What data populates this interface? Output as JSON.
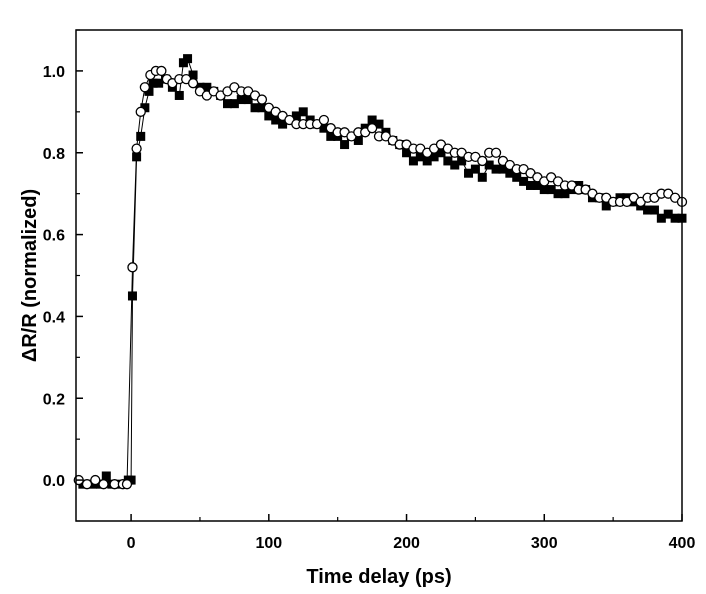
{
  "chart_data": {
    "type": "scatter",
    "title": "",
    "xlabel": "Time delay (ps)",
    "ylabel": "ΔR/R (normalized)",
    "xlim": [
      -40,
      400
    ],
    "ylim": [
      -0.1,
      1.1
    ],
    "x_ticks": [
      0,
      100,
      200,
      300,
      400
    ],
    "x_tick_labels": [
      "0",
      "100",
      "200",
      "300",
      "400"
    ],
    "y_ticks": [
      0.0,
      0.2,
      0.4,
      0.6,
      0.8,
      1.0
    ],
    "y_tick_labels": [
      "0.0",
      "0.2",
      "0.4",
      "0.6",
      "0.8",
      "1.0"
    ],
    "grid": false,
    "legend": "none",
    "series": [
      {
        "marker": "filled-square",
        "color": "#000000",
        "points": [
          [
            -35,
            -0.01
          ],
          [
            -28,
            -0.01
          ],
          [
            -22,
            -0.01
          ],
          [
            -18,
            0.01
          ],
          [
            -14,
            -0.01
          ],
          [
            -8,
            -0.01
          ],
          [
            -2,
            0.0
          ],
          [
            0,
            0.0
          ],
          [
            1,
            0.45
          ],
          [
            4,
            0.79
          ],
          [
            7,
            0.84
          ],
          [
            10,
            0.91
          ],
          [
            13,
            0.95
          ],
          [
            16,
            0.97
          ],
          [
            20,
            0.97
          ],
          [
            25,
            0.98
          ],
          [
            30,
            0.96
          ],
          [
            35,
            0.94
          ],
          [
            38,
            1.02
          ],
          [
            41,
            1.03
          ],
          [
            45,
            0.99
          ],
          [
            50,
            0.96
          ],
          [
            55,
            0.96
          ],
          [
            60,
            0.95
          ],
          [
            65,
            0.94
          ],
          [
            70,
            0.92
          ],
          [
            75,
            0.92
          ],
          [
            80,
            0.93
          ],
          [
            85,
            0.93
          ],
          [
            90,
            0.91
          ],
          [
            95,
            0.91
          ],
          [
            100,
            0.89
          ],
          [
            105,
            0.88
          ],
          [
            110,
            0.87
          ],
          [
            115,
            0.88
          ],
          [
            120,
            0.89
          ],
          [
            125,
            0.9
          ],
          [
            130,
            0.88
          ],
          [
            135,
            0.87
          ],
          [
            140,
            0.86
          ],
          [
            145,
            0.84
          ],
          [
            150,
            0.84
          ],
          [
            155,
            0.82
          ],
          [
            160,
            0.84
          ],
          [
            165,
            0.83
          ],
          [
            170,
            0.86
          ],
          [
            175,
            0.88
          ],
          [
            180,
            0.87
          ],
          [
            185,
            0.85
          ],
          [
            190,
            0.83
          ],
          [
            195,
            0.82
          ],
          [
            200,
            0.8
          ],
          [
            205,
            0.78
          ],
          [
            210,
            0.79
          ],
          [
            215,
            0.78
          ],
          [
            220,
            0.79
          ],
          [
            225,
            0.8
          ],
          [
            230,
            0.78
          ],
          [
            235,
            0.77
          ],
          [
            240,
            0.78
          ],
          [
            245,
            0.75
          ],
          [
            250,
            0.76
          ],
          [
            255,
            0.74
          ],
          [
            260,
            0.77
          ],
          [
            265,
            0.76
          ],
          [
            270,
            0.76
          ],
          [
            275,
            0.75
          ],
          [
            280,
            0.74
          ],
          [
            285,
            0.73
          ],
          [
            290,
            0.72
          ],
          [
            295,
            0.72
          ],
          [
            300,
            0.71
          ],
          [
            305,
            0.71
          ],
          [
            310,
            0.7
          ],
          [
            315,
            0.7
          ],
          [
            320,
            0.71
          ],
          [
            325,
            0.72
          ],
          [
            330,
            0.71
          ],
          [
            335,
            0.69
          ],
          [
            340,
            0.69
          ],
          [
            345,
            0.67
          ],
          [
            350,
            0.68
          ],
          [
            355,
            0.69
          ],
          [
            360,
            0.69
          ],
          [
            365,
            0.68
          ],
          [
            370,
            0.67
          ],
          [
            375,
            0.66
          ],
          [
            380,
            0.66
          ],
          [
            385,
            0.64
          ],
          [
            390,
            0.65
          ],
          [
            395,
            0.64
          ],
          [
            400,
            0.64
          ]
        ]
      },
      {
        "marker": "open-circle",
        "color": "#000000",
        "points": [
          [
            -38,
            0.0
          ],
          [
            -32,
            -0.01
          ],
          [
            -26,
            0.0
          ],
          [
            -20,
            -0.01
          ],
          [
            -12,
            -0.01
          ],
          [
            -6,
            -0.01
          ],
          [
            -3,
            -0.01
          ],
          [
            1,
            0.52
          ],
          [
            4,
            0.81
          ],
          [
            7,
            0.9
          ],
          [
            10,
            0.96
          ],
          [
            14,
            0.99
          ],
          [
            18,
            1.0
          ],
          [
            22,
            1.0
          ],
          [
            26,
            0.98
          ],
          [
            30,
            0.97
          ],
          [
            35,
            0.98
          ],
          [
            40,
            0.98
          ],
          [
            45,
            0.97
          ],
          [
            50,
            0.95
          ],
          [
            55,
            0.94
          ],
          [
            60,
            0.95
          ],
          [
            65,
            0.94
          ],
          [
            70,
            0.95
          ],
          [
            75,
            0.96
          ],
          [
            80,
            0.95
          ],
          [
            85,
            0.95
          ],
          [
            90,
            0.94
          ],
          [
            95,
            0.93
          ],
          [
            100,
            0.91
          ],
          [
            105,
            0.9
          ],
          [
            110,
            0.89
          ],
          [
            115,
            0.88
          ],
          [
            120,
            0.87
          ],
          [
            125,
            0.87
          ],
          [
            130,
            0.87
          ],
          [
            135,
            0.87
          ],
          [
            140,
            0.88
          ],
          [
            145,
            0.86
          ],
          [
            150,
            0.85
          ],
          [
            155,
            0.85
          ],
          [
            160,
            0.84
          ],
          [
            165,
            0.85
          ],
          [
            170,
            0.85
          ],
          [
            175,
            0.86
          ],
          [
            180,
            0.84
          ],
          [
            185,
            0.84
          ],
          [
            190,
            0.83
          ],
          [
            195,
            0.82
          ],
          [
            200,
            0.82
          ],
          [
            205,
            0.81
          ],
          [
            210,
            0.81
          ],
          [
            215,
            0.8
          ],
          [
            220,
            0.81
          ],
          [
            225,
            0.82
          ],
          [
            230,
            0.81
          ],
          [
            235,
            0.8
          ],
          [
            240,
            0.8
          ],
          [
            245,
            0.79
          ],
          [
            250,
            0.79
          ],
          [
            255,
            0.78
          ],
          [
            260,
            0.8
          ],
          [
            265,
            0.8
          ],
          [
            270,
            0.78
          ],
          [
            275,
            0.77
          ],
          [
            280,
            0.76
          ],
          [
            285,
            0.76
          ],
          [
            290,
            0.75
          ],
          [
            295,
            0.74
          ],
          [
            300,
            0.73
          ],
          [
            305,
            0.74
          ],
          [
            310,
            0.73
          ],
          [
            315,
            0.72
          ],
          [
            320,
            0.72
          ],
          [
            325,
            0.71
          ],
          [
            330,
            0.71
          ],
          [
            335,
            0.7
          ],
          [
            340,
            0.69
          ],
          [
            345,
            0.69
          ],
          [
            350,
            0.68
          ],
          [
            355,
            0.68
          ],
          [
            360,
            0.68
          ],
          [
            365,
            0.69
          ],
          [
            370,
            0.68
          ],
          [
            375,
            0.69
          ],
          [
            380,
            0.69
          ],
          [
            385,
            0.7
          ],
          [
            390,
            0.7
          ],
          [
            395,
            0.69
          ],
          [
            400,
            0.68
          ]
        ]
      }
    ]
  }
}
